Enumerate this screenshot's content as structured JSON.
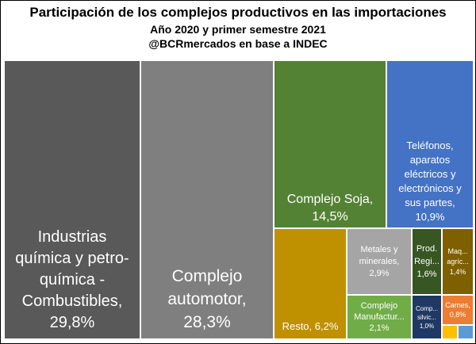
{
  "title": "Participación de los complejos productivos en las importaciones",
  "subtitle": "Año 2020 y primer semestre 2021",
  "source": "@BCRmercados en base a INDEC",
  "chart_data": {
    "type": "treemap",
    "unit": "%",
    "items": [
      {
        "label": "Industrias\nquímica y petro-\nquímica -\nCombustibles,\n29,8%",
        "name": "Industrias química y petro-química - Combustibles",
        "value": 29.8,
        "color": "#595959"
      },
      {
        "label": "Complejo\nautomotor,\n28,3%",
        "name": "Complejo automotor",
        "value": 28.3,
        "color": "#7f7f7f"
      },
      {
        "label": "Complejo Soja,\n14,5%",
        "name": "Complejo Soja",
        "value": 14.5,
        "color": "#548235"
      },
      {
        "label": "Teléfonos,\naparatos\neléctricos y\nelectrónicos y\nsus partes,\n10,9%",
        "name": "Teléfonos, aparatos eléctricos y electrónicos y sus partes",
        "value": 10.9,
        "color": "#4472c4"
      },
      {
        "label": "Resto, 6,2%",
        "name": "Resto",
        "value": 6.2,
        "color": "#bf9000"
      },
      {
        "label": "Metales y\nminerales,\n2,9%",
        "name": "Metales y minerales",
        "value": 2.9,
        "color": "#a5a5a5"
      },
      {
        "label": "Complejo\nManufactur...\n2,1%",
        "name": "Complejo Manufactur...",
        "value": 2.1,
        "color": "#70ad47"
      },
      {
        "label": "Prod.\nRegi...\n1,6%",
        "name": "Prod. Regi...",
        "value": 1.6,
        "color": "#375623"
      },
      {
        "label": "Maq...\nagríc...\n1,4%",
        "name": "Maq... agríc...",
        "value": 1.4,
        "color": "#7f6000"
      },
      {
        "label": "Comp...\nsilvic...\n1,0%",
        "name": "Comp... silvic...",
        "value": 1.0,
        "color": "#203864"
      },
      {
        "label": "Carnes,\n0,8%",
        "name": "Carnes",
        "value": 0.8,
        "color": "#ed7d31"
      },
      {
        "label": "",
        "name": "",
        "value": null,
        "color": "#ffc000"
      },
      {
        "label": "",
        "name": "",
        "value": null,
        "color": "#5b9bd5"
      }
    ]
  }
}
